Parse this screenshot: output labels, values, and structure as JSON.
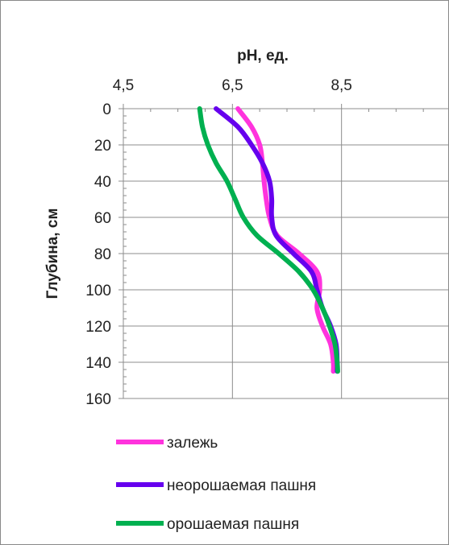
{
  "chart_data": {
    "type": "line",
    "xlabel": "pH, ед.",
    "ylabel": "Глубина, см",
    "xlim": [
      4.5,
      10.5
    ],
    "xticks": [
      "4,5",
      "6,5",
      "8,5"
    ],
    "xtick_values": [
      4.5,
      6.5,
      8.5
    ],
    "ylim": [
      0,
      160
    ],
    "yticks": [
      "0",
      "20",
      "40",
      "60",
      "80",
      "100",
      "120",
      "140",
      "160"
    ],
    "ytick_values": [
      0,
      20,
      40,
      60,
      80,
      100,
      120,
      140,
      160
    ],
    "y_inverted": true,
    "x_axis_position": "top",
    "grid": "horizontal",
    "legend_position": "bottom",
    "series": [
      {
        "name": "залежь",
        "color": "#ff33dd",
        "points": [
          [
            6.6,
            0
          ],
          [
            6.85,
            10
          ],
          [
            7.0,
            20
          ],
          [
            7.05,
            30
          ],
          [
            7.08,
            40
          ],
          [
            7.12,
            50
          ],
          [
            7.18,
            60
          ],
          [
            7.32,
            70
          ],
          [
            7.72,
            80
          ],
          [
            8.05,
            90
          ],
          [
            8.1,
            100
          ],
          [
            8.05,
            110
          ],
          [
            8.15,
            120
          ],
          [
            8.3,
            130
          ],
          [
            8.35,
            140
          ],
          [
            8.35,
            145
          ]
        ]
      },
      {
        "name": "неорошаемая пашня",
        "color": "#6600ee",
        "points": [
          [
            6.2,
            0
          ],
          [
            6.6,
            10
          ],
          [
            6.85,
            20
          ],
          [
            7.05,
            30
          ],
          [
            7.18,
            40
          ],
          [
            7.22,
            50
          ],
          [
            7.22,
            60
          ],
          [
            7.3,
            70
          ],
          [
            7.62,
            80
          ],
          [
            7.95,
            90
          ],
          [
            8.05,
            100
          ],
          [
            8.15,
            110
          ],
          [
            8.3,
            120
          ],
          [
            8.4,
            130
          ],
          [
            8.42,
            140
          ],
          [
            8.42,
            145
          ]
        ]
      },
      {
        "name": "орошаемая пашня",
        "color": "#00b050",
        "points": [
          [
            5.9,
            0
          ],
          [
            5.95,
            10
          ],
          [
            6.05,
            20
          ],
          [
            6.2,
            30
          ],
          [
            6.4,
            40
          ],
          [
            6.55,
            50
          ],
          [
            6.7,
            60
          ],
          [
            6.95,
            70
          ],
          [
            7.35,
            80
          ],
          [
            7.72,
            90
          ],
          [
            7.98,
            100
          ],
          [
            8.15,
            110
          ],
          [
            8.28,
            120
          ],
          [
            8.38,
            130
          ],
          [
            8.42,
            140
          ],
          [
            8.43,
            145
          ]
        ]
      }
    ]
  }
}
